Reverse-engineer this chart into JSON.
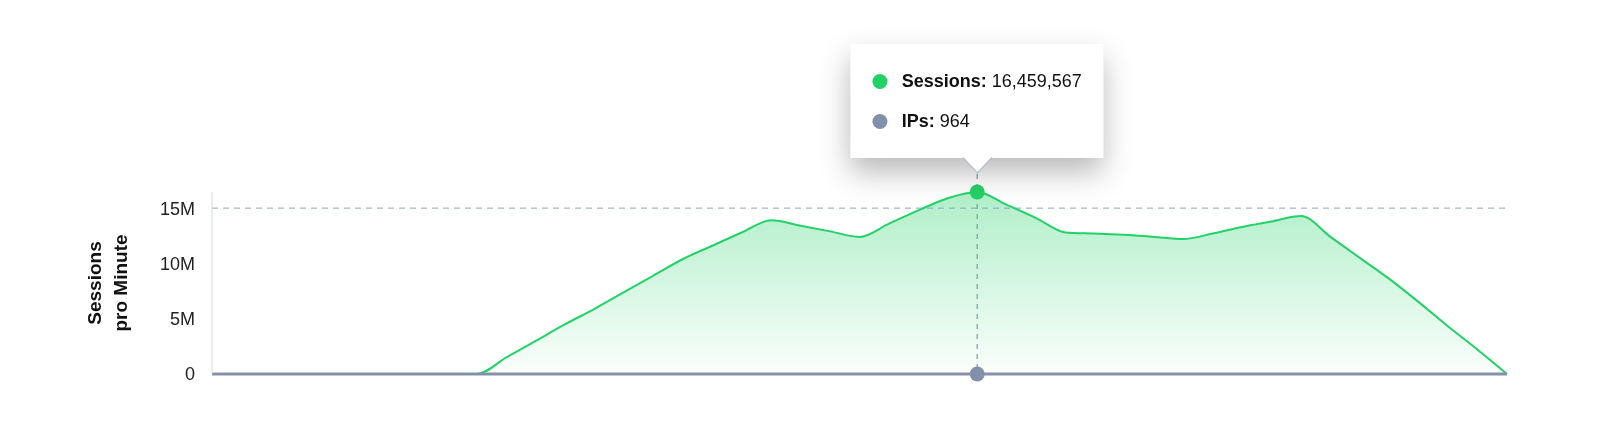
{
  "chart_data": {
    "type": "area",
    "ylabel": "Sessions\npro Minute",
    "categories": [
      null,
      null,
      null,
      null,
      null,
      null,
      null,
      null,
      null,
      null,
      null,
      null,
      null,
      null,
      null,
      null,
      null,
      null,
      null,
      null,
      null,
      null,
      null,
      null,
      null,
      null,
      null,
      null,
      null,
      null,
      null,
      null,
      null,
      null,
      null,
      null,
      null,
      null,
      null,
      null,
      null,
      null,
      null,
      null,
      null
    ],
    "series": [
      {
        "color": "#22d266",
        "values": [
          0,
          0,
          0,
          0,
          0,
          0,
          0,
          0,
          0,
          0,
          1500000,
          3000000,
          4500000,
          5900000,
          7400000,
          8900000,
          10400000,
          11600000,
          12800000,
          13900000,
          13400000,
          12900000,
          12400000,
          13600000,
          14800000,
          15900000,
          16459567,
          15300000,
          14100000,
          12800000,
          12700000,
          12600000,
          12400000,
          12200000,
          12700000,
          13300000,
          13800000,
          14300000,
          12400000,
          10500000,
          8600000,
          6500000,
          4300000,
          2200000,
          0
        ]
      },
      {
        "type": "line",
        "color": "#8390ab",
        "marker": "circle",
        "values": [
          null,
          null,
          null,
          null,
          null,
          null,
          null,
          null,
          null,
          null,
          null,
          null,
          null,
          null,
          null,
          null,
          null,
          null,
          null,
          null,
          null,
          null,
          null,
          null,
          null,
          null,
          964,
          null,
          null,
          null,
          null,
          null,
          null,
          null,
          null,
          null,
          null,
          null,
          null,
          null,
          null,
          null,
          null,
          null,
          null
        ]
      }
    ],
    "ylim": [
      0,
      16459567
    ],
    "yticks": [
      0,
      {
        "value": 5000000,
        "label": "5M"
      },
      {
        "value": 10000000,
        "label": "10M"
      },
      {
        "value": 15000000,
        "label": "15M"
      }
    ],
    "ref_lines": [
      {
        "axis": "y",
        "value": 15000000,
        "color": "#8fa1c0",
        "line_style": "dashed"
      }
    ],
    "annotations": [
      "Sessions: 16,459,567",
      "IPs: 964"
    ]
  }
}
